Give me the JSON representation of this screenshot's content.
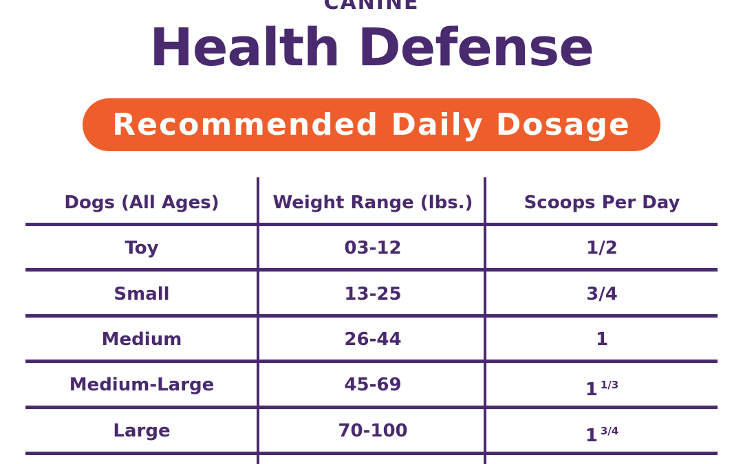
{
  "header": {
    "supertitle": "CANINE",
    "title": "Health Defense",
    "banner": "Recommended Daily Dosage"
  },
  "table": {
    "columns": [
      "Dogs (All Ages)",
      "Weight Range (lbs.)",
      "Scoops Per Day"
    ],
    "rows": [
      {
        "size": "Toy",
        "weight": "03-12",
        "scoops": "1/2",
        "scoops_fraction": ""
      },
      {
        "size": "Small",
        "weight": "13-25",
        "scoops": "3/4",
        "scoops_fraction": ""
      },
      {
        "size": "Medium",
        "weight": "26-44",
        "scoops": "1",
        "scoops_fraction": ""
      },
      {
        "size": "Medium-Large",
        "weight": "45-69",
        "scoops": "1",
        "scoops_fraction": "1/3"
      },
      {
        "size": "Large",
        "weight": "70-100",
        "scoops": "1",
        "scoops_fraction": "3/4"
      }
    ]
  },
  "colors": {
    "brand_purple": "#4a2a6e",
    "banner_orange": "#ee5e2c"
  }
}
